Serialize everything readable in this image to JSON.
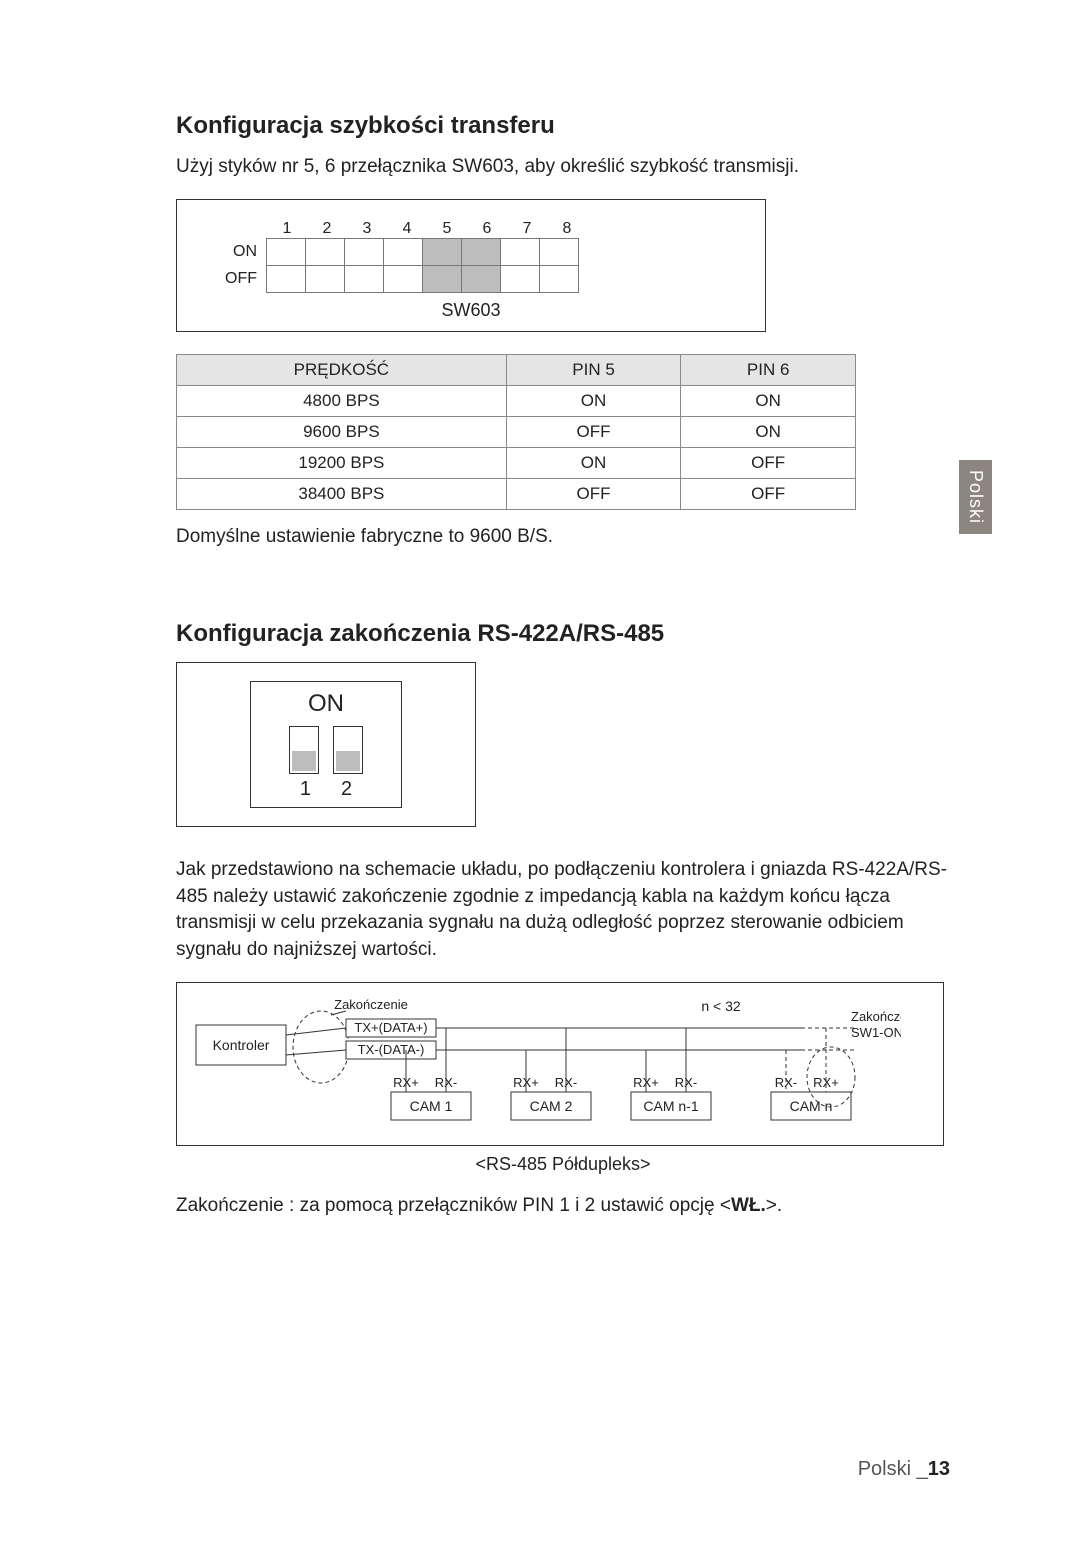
{
  "side_tab": "Polski",
  "section1": {
    "heading": "Konfiguracja szybkości transferu",
    "intro": "Użyj styków nr 5, 6 przełącznika SW603, aby określić szybkość transmisji.",
    "dip": {
      "columns": [
        "1",
        "2",
        "3",
        "4",
        "5",
        "6",
        "7",
        "8"
      ],
      "on_label": "ON",
      "off_label": "OFF",
      "shaded_cols_top": [
        5,
        6
      ],
      "shaded_cols_bottom": [
        5,
        6
      ],
      "caption": "SW603"
    },
    "table": {
      "header_bg": "#e5e5e5",
      "columns": [
        "PRĘDKOŚĆ",
        "PIN 5",
        "PIN 6"
      ],
      "rows": [
        [
          "4800 BPS",
          "ON",
          "ON"
        ],
        [
          "9600 BPS",
          "OFF",
          "ON"
        ],
        [
          "19200 BPS",
          "ON",
          "OFF"
        ],
        [
          "38400 BPS",
          "OFF",
          "OFF"
        ]
      ]
    },
    "note": "Domyślne ustawienie fabryczne to 9600 B/S."
  },
  "section2": {
    "heading": "Konfiguracja zakończenia RS-422A/RS-485",
    "small_dip": {
      "on_label": "ON",
      "numbers": [
        "1",
        "2"
      ]
    },
    "paragraph": "Jak przedstawiono na schemacie układu, po podłączeniu kontrolera i gniazda RS-422A/RS-485 należy ustawić zakończenie zgodnie z impedancją kabla na każdym końcu łącza transmisji w celu przekazania sygnału na dużą odległość poprzez sterowanie odbiciem sygnału do najniższej wartości.",
    "bus": {
      "controller_label": "Kontroler",
      "term_left_label": "Zakończenie",
      "tx_plus_label": "TX+(DATA+)",
      "tx_minus_label": "TX-(DATA-)",
      "n_label": "n < 32",
      "term_right_top": "Zakończenie",
      "term_right_bottom": "SW1-ON",
      "rx_plus": "RX+",
      "rx_minus": "RX-",
      "cams": [
        "CAM 1",
        "CAM 2",
        "CAM n-1",
        "CAM n"
      ],
      "caption": "<RS-485 Półdupleks>"
    },
    "last_line_prefix": "Zakończenie : za pomocą przełączników PIN 1 i 2 ustawić opcję <",
    "last_line_bold": "WŁ.",
    "last_line_suffix": ">."
  },
  "footer": {
    "lang": "Polski",
    "page": "13"
  }
}
